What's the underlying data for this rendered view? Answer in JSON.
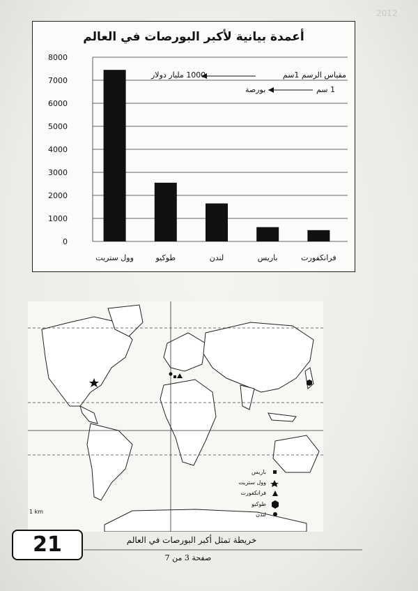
{
  "chart_data": {
    "type": "bar",
    "title": "أعمدة بيانية لأكبر البورصات في العالم",
    "categories": [
      "وول ستريت",
      "طوكيو",
      "لندن",
      "باريس",
      "فرانكفورت"
    ],
    "values": [
      7450,
      2550,
      1650,
      620,
      490
    ],
    "ylim": [
      0,
      8000
    ],
    "yticks": [
      0,
      1000,
      2000,
      3000,
      4000,
      5000,
      6000,
      7000,
      8000
    ],
    "grid": true,
    "legend": "none",
    "bar_color": "#111111",
    "scale_notes": [
      {
        "left": "مقياس الرسم 1سم",
        "right": "1000 مليار دولار"
      },
      {
        "left": "1 سم",
        "right": "بورصة"
      }
    ]
  },
  "map": {
    "legend": [
      {
        "label": "باريس",
        "icon": "square-icon"
      },
      {
        "label": "وول ستريت",
        "icon": "star-icon"
      },
      {
        "label": "فرانكفورت",
        "icon": "triangle-icon"
      },
      {
        "label": "طوكيو",
        "icon": "hexagon-icon"
      },
      {
        "label": "لندن",
        "icon": "circle-icon"
      }
    ],
    "scale_label": "1 km"
  },
  "caption": "خريطة تمثل أكبر البورصات في العالم",
  "page_number": "صفحة 3 من 7",
  "badge": "21",
  "header_ghost": "2012"
}
